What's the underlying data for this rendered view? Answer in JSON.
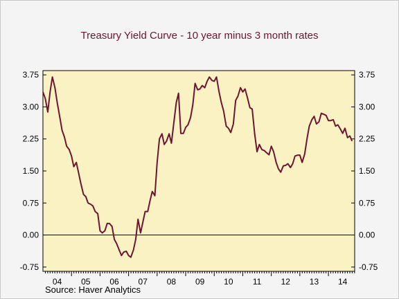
{
  "chart_data": {
    "type": "line",
    "title": "Treasury Yield Curve - 10 year minus 3 month rates",
    "source": "Source: Haver Analytics",
    "colors": {
      "plot_bg": "#fbf2c4",
      "line": "#6b1530",
      "title": "#6b1530"
    },
    "grid": false,
    "ylim": [
      -0.85,
      3.85
    ],
    "y_ticks": [
      -0.75,
      0.0,
      0.75,
      1.5,
      2.25,
      3.0,
      3.75
    ],
    "y_tick_labels": [
      "-0.75",
      "0.00",
      "0.75",
      "1.50",
      "2.25",
      "3.00",
      "3.75"
    ],
    "x_tick_labels": [
      "04",
      "05",
      "06",
      "07",
      "08",
      "09",
      "10",
      "11",
      "12",
      "13",
      "14"
    ],
    "xlim": [
      2004.0,
      2014.92
    ],
    "zero_line": 0.0,
    "series": [
      {
        "points": [
          [
            2004.0,
            3.35
          ],
          [
            2004.08,
            3.2
          ],
          [
            2004.17,
            2.88
          ],
          [
            2004.25,
            3.35
          ],
          [
            2004.33,
            3.7
          ],
          [
            2004.42,
            3.45
          ],
          [
            2004.5,
            3.1
          ],
          [
            2004.58,
            2.8
          ],
          [
            2004.67,
            2.45
          ],
          [
            2004.75,
            2.3
          ],
          [
            2004.83,
            2.08
          ],
          [
            2004.92,
            2.0
          ],
          [
            2005.0,
            1.85
          ],
          [
            2005.08,
            1.6
          ],
          [
            2005.17,
            1.7
          ],
          [
            2005.25,
            1.45
          ],
          [
            2005.33,
            1.2
          ],
          [
            2005.42,
            0.95
          ],
          [
            2005.5,
            0.9
          ],
          [
            2005.58,
            0.75
          ],
          [
            2005.67,
            0.72
          ],
          [
            2005.75,
            0.68
          ],
          [
            2005.83,
            0.55
          ],
          [
            2005.92,
            0.5
          ],
          [
            2006.0,
            0.1
          ],
          [
            2006.08,
            0.05
          ],
          [
            2006.17,
            0.1
          ],
          [
            2006.25,
            0.27
          ],
          [
            2006.33,
            0.27
          ],
          [
            2006.42,
            0.2
          ],
          [
            2006.5,
            -0.1
          ],
          [
            2006.58,
            -0.2
          ],
          [
            2006.67,
            -0.35
          ],
          [
            2006.75,
            -0.48
          ],
          [
            2006.83,
            -0.4
          ],
          [
            2006.92,
            -0.38
          ],
          [
            2007.0,
            -0.48
          ],
          [
            2007.08,
            -0.52
          ],
          [
            2007.17,
            -0.35
          ],
          [
            2007.25,
            -0.1
          ],
          [
            2007.33,
            0.37
          ],
          [
            2007.42,
            0.05
          ],
          [
            2007.5,
            0.3
          ],
          [
            2007.58,
            0.55
          ],
          [
            2007.67,
            0.55
          ],
          [
            2007.75,
            0.8
          ],
          [
            2007.83,
            1.02
          ],
          [
            2007.92,
            0.92
          ],
          [
            2008.0,
            1.7
          ],
          [
            2008.08,
            2.25
          ],
          [
            2008.17,
            2.37
          ],
          [
            2008.25,
            2.12
          ],
          [
            2008.33,
            2.2
          ],
          [
            2008.42,
            2.37
          ],
          [
            2008.5,
            2.15
          ],
          [
            2008.58,
            2.6
          ],
          [
            2008.67,
            3.1
          ],
          [
            2008.75,
            3.32
          ],
          [
            2008.83,
            2.38
          ],
          [
            2008.92,
            2.38
          ],
          [
            2009.0,
            2.52
          ],
          [
            2009.08,
            2.58
          ],
          [
            2009.17,
            2.75
          ],
          [
            2009.25,
            3.05
          ],
          [
            2009.33,
            3.55
          ],
          [
            2009.42,
            3.4
          ],
          [
            2009.5,
            3.42
          ],
          [
            2009.58,
            3.5
          ],
          [
            2009.67,
            3.45
          ],
          [
            2009.75,
            3.6
          ],
          [
            2009.83,
            3.7
          ],
          [
            2009.92,
            3.62
          ],
          [
            2010.0,
            3.6
          ],
          [
            2010.08,
            3.7
          ],
          [
            2010.17,
            3.35
          ],
          [
            2010.25,
            3.1
          ],
          [
            2010.33,
            2.9
          ],
          [
            2010.42,
            2.55
          ],
          [
            2010.5,
            2.5
          ],
          [
            2010.58,
            2.4
          ],
          [
            2010.67,
            2.6
          ],
          [
            2010.75,
            3.15
          ],
          [
            2010.83,
            3.25
          ],
          [
            2010.92,
            3.45
          ],
          [
            2011.0,
            3.35
          ],
          [
            2011.08,
            3.42
          ],
          [
            2011.17,
            3.2
          ],
          [
            2011.25,
            2.98
          ],
          [
            2011.33,
            2.95
          ],
          [
            2011.42,
            2.35
          ],
          [
            2011.5,
            1.95
          ],
          [
            2011.58,
            2.12
          ],
          [
            2011.67,
            2.0
          ],
          [
            2011.75,
            1.98
          ],
          [
            2011.83,
            1.93
          ],
          [
            2011.92,
            1.88
          ],
          [
            2012.0,
            2.08
          ],
          [
            2012.08,
            1.95
          ],
          [
            2012.17,
            1.7
          ],
          [
            2012.25,
            1.55
          ],
          [
            2012.33,
            1.47
          ],
          [
            2012.42,
            1.62
          ],
          [
            2012.5,
            1.63
          ],
          [
            2012.58,
            1.67
          ],
          [
            2012.67,
            1.58
          ],
          [
            2012.75,
            1.67
          ],
          [
            2012.83,
            1.85
          ],
          [
            2012.92,
            1.87
          ],
          [
            2013.0,
            1.87
          ],
          [
            2013.08,
            1.7
          ],
          [
            2013.17,
            1.9
          ],
          [
            2013.25,
            2.25
          ],
          [
            2013.33,
            2.55
          ],
          [
            2013.42,
            2.7
          ],
          [
            2013.5,
            2.78
          ],
          [
            2013.58,
            2.6
          ],
          [
            2013.67,
            2.65
          ],
          [
            2013.75,
            2.85
          ],
          [
            2013.83,
            2.83
          ],
          [
            2013.92,
            2.8
          ],
          [
            2014.0,
            2.68
          ],
          [
            2014.08,
            2.68
          ],
          [
            2014.17,
            2.7
          ],
          [
            2014.25,
            2.55
          ],
          [
            2014.33,
            2.58
          ],
          [
            2014.42,
            2.48
          ],
          [
            2014.5,
            2.38
          ],
          [
            2014.58,
            2.5
          ],
          [
            2014.67,
            2.28
          ],
          [
            2014.75,
            2.32
          ],
          [
            2014.83,
            2.2
          ]
        ]
      }
    ]
  }
}
